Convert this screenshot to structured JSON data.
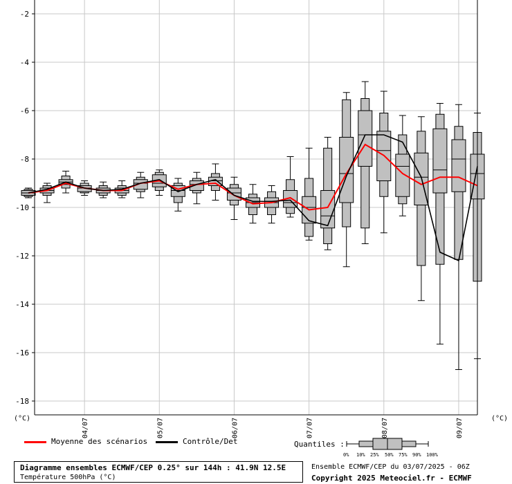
{
  "chart_data": {
    "type": "boxplot",
    "ylim": [
      -18.5,
      -1.4
    ],
    "yticks": [
      -2,
      -4,
      -6,
      -8,
      -10,
      -12,
      -14,
      -16,
      -18
    ],
    "ytick_labels": [
      "-2",
      "-4",
      "-6",
      "-8",
      "-10",
      "-12",
      "-14",
      "-16",
      "-18"
    ],
    "grid": true,
    "x_range_hours": [
      0,
      144
    ],
    "x_dates": [
      {
        "label": "04/07",
        "hour": 18
      },
      {
        "label": "05/07",
        "hour": 42
      },
      {
        "label": "06/07",
        "hour": 66
      },
      {
        "label": "07/07",
        "hour": 90
      },
      {
        "label": "08/07",
        "hour": 114
      },
      {
        "label": "09/07",
        "hour": 138
      }
    ],
    "y_unit_left": "(°C)",
    "y_unit_right": "(°C)",
    "boxes": [
      {
        "hour": 0,
        "p0": -9.6,
        "p10": -9.55,
        "p25": -9.5,
        "p50": -9.4,
        "p75": -9.3,
        "p90": -9.25,
        "p100": -9.2
      },
      {
        "hour": 6,
        "p0": -9.8,
        "p10": -9.5,
        "p25": -9.4,
        "p50": -9.3,
        "p75": -9.2,
        "p90": -9.1,
        "p100": -9.0
      },
      {
        "hour": 12,
        "p0": -9.4,
        "p10": -9.2,
        "p25": -9.05,
        "p50": -8.95,
        "p75": -8.85,
        "p90": -8.7,
        "p100": -8.5
      },
      {
        "hour": 18,
        "p0": -9.5,
        "p10": -9.4,
        "p25": -9.35,
        "p50": -9.2,
        "p75": -9.1,
        "p90": -9.0,
        "p100": -8.9
      },
      {
        "hour": 24,
        "p0": -9.6,
        "p10": -9.5,
        "p25": -9.4,
        "p50": -9.3,
        "p75": -9.2,
        "p90": -9.1,
        "p100": -8.95
      },
      {
        "hour": 30,
        "p0": -9.6,
        "p10": -9.5,
        "p25": -9.4,
        "p50": -9.3,
        "p75": -9.2,
        "p90": -9.1,
        "p100": -8.9
      },
      {
        "hour": 36,
        "p0": -9.6,
        "p10": -9.35,
        "p25": -9.25,
        "p50": -9.0,
        "p75": -8.85,
        "p90": -8.75,
        "p100": -8.55
      },
      {
        "hour": 42,
        "p0": -9.5,
        "p10": -9.3,
        "p25": -9.15,
        "p50": -9.0,
        "p75": -8.65,
        "p90": -8.55,
        "p100": -8.45
      },
      {
        "hour": 48,
        "p0": -10.15,
        "p10": -9.8,
        "p25": -9.55,
        "p50": -9.3,
        "p75": -9.1,
        "p90": -9.0,
        "p100": -8.8
      },
      {
        "hour": 54,
        "p0": -9.85,
        "p10": -9.4,
        "p25": -9.3,
        "p50": -9.05,
        "p75": -8.9,
        "p90": -8.8,
        "p100": -8.55
      },
      {
        "hour": 60,
        "p0": -9.7,
        "p10": -9.3,
        "p25": -9.1,
        "p50": -8.9,
        "p75": -8.75,
        "p90": -8.6,
        "p100": -8.2
      },
      {
        "hour": 66,
        "p0": -10.5,
        "p10": -9.9,
        "p25": -9.7,
        "p50": -9.4,
        "p75": -9.2,
        "p90": -9.05,
        "p100": -8.75
      },
      {
        "hour": 72,
        "p0": -10.65,
        "p10": -10.3,
        "p25": -10.0,
        "p50": -9.8,
        "p75": -9.6,
        "p90": -9.45,
        "p100": -9.05
      },
      {
        "hour": 78,
        "p0": -10.65,
        "p10": -10.3,
        "p25": -10.0,
        "p50": -9.8,
        "p75": -9.6,
        "p90": -9.35,
        "p100": -9.1
      },
      {
        "hour": 84,
        "p0": -10.4,
        "p10": -10.25,
        "p25": -10.0,
        "p50": -9.8,
        "p75": -9.3,
        "p90": -8.85,
        "p100": -7.9
      },
      {
        "hour": 90,
        "p0": -11.35,
        "p10": -11.2,
        "p25": -10.65,
        "p50": -10.0,
        "p75": -9.55,
        "p90": -8.8,
        "p100": -7.55
      },
      {
        "hour": 96,
        "p0": -11.75,
        "p10": -11.5,
        "p25": -10.85,
        "p50": -10.35,
        "p75": -9.3,
        "p90": -7.55,
        "p100": -7.1
      },
      {
        "hour": 102,
        "p0": -12.45,
        "p10": -10.8,
        "p25": -9.8,
        "p50": -8.6,
        "p75": -7.1,
        "p90": -5.55,
        "p100": -5.25
      },
      {
        "hour": 108,
        "p0": -11.5,
        "p10": -10.85,
        "p25": -8.3,
        "p50": -7.0,
        "p75": -6.0,
        "p90": -5.5,
        "p100": -4.8
      },
      {
        "hour": 114,
        "p0": -11.05,
        "p10": -9.55,
        "p25": -8.9,
        "p50": -7.65,
        "p75": -6.85,
        "p90": -6.1,
        "p100": -5.2
      },
      {
        "hour": 120,
        "p0": -10.35,
        "p10": -9.85,
        "p25": -9.55,
        "p50": -8.3,
        "p75": -7.8,
        "p90": -7.0,
        "p100": -6.2
      },
      {
        "hour": 126,
        "p0": -13.85,
        "p10": -12.4,
        "p25": -9.9,
        "p50": -8.75,
        "p75": -7.75,
        "p90": -6.85,
        "p100": -6.25
      },
      {
        "hour": 132,
        "p0": -15.65,
        "p10": -12.35,
        "p25": -9.4,
        "p50": -8.45,
        "p75": -6.75,
        "p90": -6.15,
        "p100": -5.7
      },
      {
        "hour": 138,
        "p0": -16.7,
        "p10": -12.15,
        "p25": -9.35,
        "p50": -8.0,
        "p75": -7.2,
        "p90": -6.65,
        "p100": -5.75
      },
      {
        "hour": 144,
        "p0": -16.25,
        "p10": -13.05,
        "p25": -9.65,
        "p50": -8.6,
        "p75": -7.8,
        "p90": -6.9,
        "p100": -6.1
      }
    ],
    "series": [
      {
        "name": "Moyenne des scénarios",
        "color": "#ff0000",
        "x": [
          0,
          6,
          12,
          18,
          24,
          30,
          36,
          42,
          48,
          54,
          60,
          66,
          72,
          78,
          84,
          90,
          96,
          102,
          108,
          114,
          120,
          126,
          132,
          138,
          144
        ],
        "y": [
          -9.4,
          -9.3,
          -9.0,
          -9.2,
          -9.3,
          -9.3,
          -9.0,
          -8.9,
          -9.25,
          -9.05,
          -9.0,
          -9.5,
          -9.85,
          -9.8,
          -9.6,
          -10.1,
          -10.0,
          -8.6,
          -7.4,
          -7.85,
          -8.6,
          -9.05,
          -8.75,
          -8.75,
          -9.1
        ]
      },
      {
        "name": "Contrôle/Det",
        "color": "#000000",
        "x": [
          0,
          6,
          12,
          18,
          24,
          30,
          36,
          42,
          48,
          54,
          60,
          66,
          72,
          78,
          84,
          90,
          96,
          102,
          108,
          114,
          120,
          126,
          132,
          138,
          144
        ],
        "y": [
          -9.4,
          -9.25,
          -8.95,
          -9.2,
          -9.3,
          -9.25,
          -9.0,
          -8.85,
          -9.35,
          -9.05,
          -8.85,
          -9.5,
          -9.75,
          -9.75,
          -9.7,
          -10.55,
          -10.75,
          -8.7,
          -7.0,
          -7.0,
          -7.3,
          -8.75,
          -11.85,
          -12.2,
          -8.3
        ]
      }
    ]
  },
  "legend": {
    "mean_label": "Moyenne des scénarios",
    "control_label": "Contrôle/Det",
    "quantiles_label": "Quantiles :",
    "quantile_ticks": [
      "0%",
      "10%",
      "25%",
      "50%",
      "75%",
      "90%",
      "100%"
    ]
  },
  "footer": {
    "title": "Diagramme ensembles ECMWF/CEP 0.25° sur 144h : 41.9N 12.5E",
    "subtitle": "Température 500hPa (°C)",
    "run": "Ensemble ECMWF/CEP du 03/07/2025 - 06Z",
    "copyright": "Copyright 2025 Meteociel.fr - ECMWF"
  }
}
